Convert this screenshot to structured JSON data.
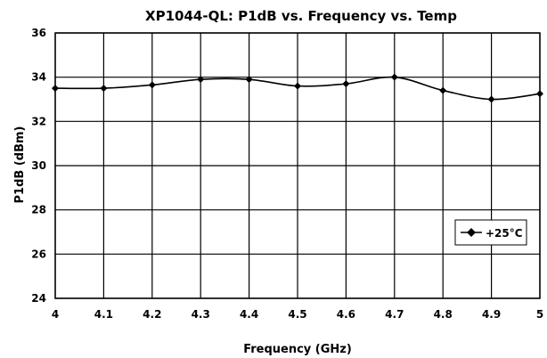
{
  "chart_data": {
    "type": "line",
    "title": "XP1044-QL: P1dB vs. Frequency vs. Temp",
    "xlabel": "Frequency (GHz)",
    "ylabel": "P1dB (dBm)",
    "xlim": [
      4,
      5
    ],
    "ylim": [
      24,
      36
    ],
    "x_ticks": [
      "4",
      "4.1",
      "4.2",
      "4.3",
      "4.4",
      "4.5",
      "4.6",
      "4.7",
      "4.8",
      "4.9",
      "5"
    ],
    "y_ticks": [
      "24",
      "26",
      "28",
      "30",
      "32",
      "34",
      "36"
    ],
    "grid": true,
    "legend_position": "right",
    "series": [
      {
        "name": "+25°C",
        "color": "#000000",
        "marker": "diamond",
        "x": [
          4.0,
          4.1,
          4.2,
          4.3,
          4.4,
          4.5,
          4.6,
          4.7,
          4.8,
          4.9,
          5.0
        ],
        "y": [
          33.5,
          33.5,
          33.65,
          33.9,
          33.9,
          33.6,
          33.7,
          34.0,
          33.4,
          33.0,
          33.25
        ]
      }
    ]
  }
}
